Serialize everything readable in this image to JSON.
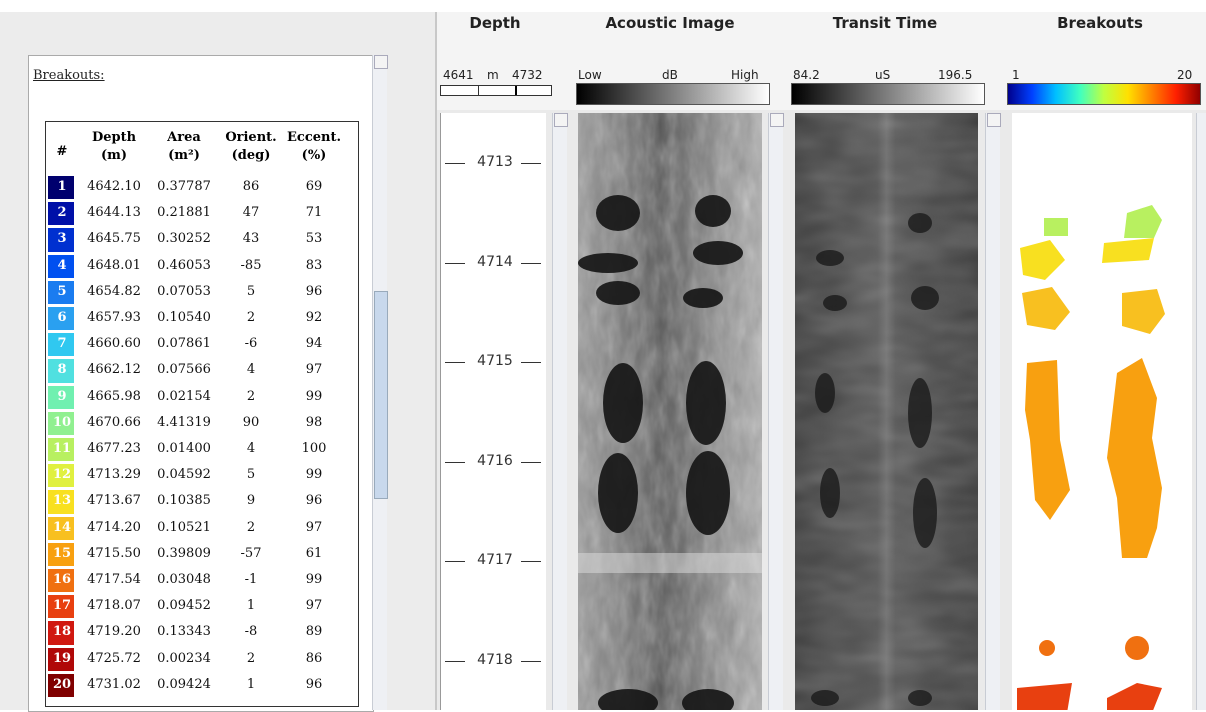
{
  "panel": {
    "title": "Breakouts:"
  },
  "table": {
    "headers": [
      [
        "#"
      ],
      [
        "Depth",
        "(m)"
      ],
      [
        "Area",
        "(m²)"
      ],
      [
        "Orient.",
        "(deg)"
      ],
      [
        "Eccent.",
        "(%)"
      ]
    ],
    "rows": [
      [
        "1",
        "4642.10",
        "0.37787",
        "86",
        "69"
      ],
      [
        "2",
        "4644.13",
        "0.21881",
        "47",
        "71"
      ],
      [
        "3",
        "4645.75",
        "0.30252",
        "43",
        "53"
      ],
      [
        "4",
        "4648.01",
        "0.46053",
        "-85",
        "83"
      ],
      [
        "5",
        "4654.82",
        "0.07053",
        "5",
        "96"
      ],
      [
        "6",
        "4657.93",
        "0.10540",
        "2",
        "92"
      ],
      [
        "7",
        "4660.60",
        "0.07861",
        "-6",
        "94"
      ],
      [
        "8",
        "4662.12",
        "0.07566",
        "4",
        "97"
      ],
      [
        "9",
        "4665.98",
        "0.02154",
        "2",
        "99"
      ],
      [
        "10",
        "4670.66",
        "4.41319",
        "90",
        "98"
      ],
      [
        "11",
        "4677.23",
        "0.01400",
        "4",
        "100"
      ],
      [
        "12",
        "4713.29",
        "0.04592",
        "5",
        "99"
      ],
      [
        "13",
        "4713.67",
        "0.10385",
        "9",
        "96"
      ],
      [
        "14",
        "4714.20",
        "0.10521",
        "2",
        "97"
      ],
      [
        "15",
        "4715.50",
        "0.39809",
        "-57",
        "61"
      ],
      [
        "16",
        "4717.54",
        "0.03048",
        "-1",
        "99"
      ],
      [
        "17",
        "4718.07",
        "0.09452",
        "1",
        "97"
      ],
      [
        "18",
        "4719.20",
        "0.13343",
        "-8",
        "89"
      ],
      [
        "19",
        "4725.72",
        "0.00234",
        "2",
        "86"
      ],
      [
        "20",
        "4731.02",
        "0.09424",
        "1",
        "96"
      ]
    ],
    "row_colors": [
      "#00006e",
      "#0010a8",
      "#0030d0",
      "#0050f0",
      "#1a7cf0",
      "#2aa0f0",
      "#30c8f0",
      "#50e0e0",
      "#70f0b0",
      "#90f090",
      "#b8f060",
      "#e0f040",
      "#f8e020",
      "#f8c020",
      "#f8a010",
      "#f07010",
      "#e84010",
      "#d01810",
      "#b00808",
      "#800000"
    ]
  },
  "tracks": [
    {
      "title": "Depth",
      "scale": [
        "4641",
        "m",
        "4732"
      ]
    },
    {
      "title": "Acoustic Image",
      "scale": [
        "Low",
        "dB",
        "High"
      ]
    },
    {
      "title": "Transit Time",
      "scale": [
        "84.2",
        "uS",
        "196.5"
      ]
    },
    {
      "title": "Breakouts",
      "scale": [
        "1",
        "20"
      ]
    }
  ],
  "depth_ticks": [
    4713,
    4714,
    4715,
    4716,
    4717,
    4718
  ]
}
